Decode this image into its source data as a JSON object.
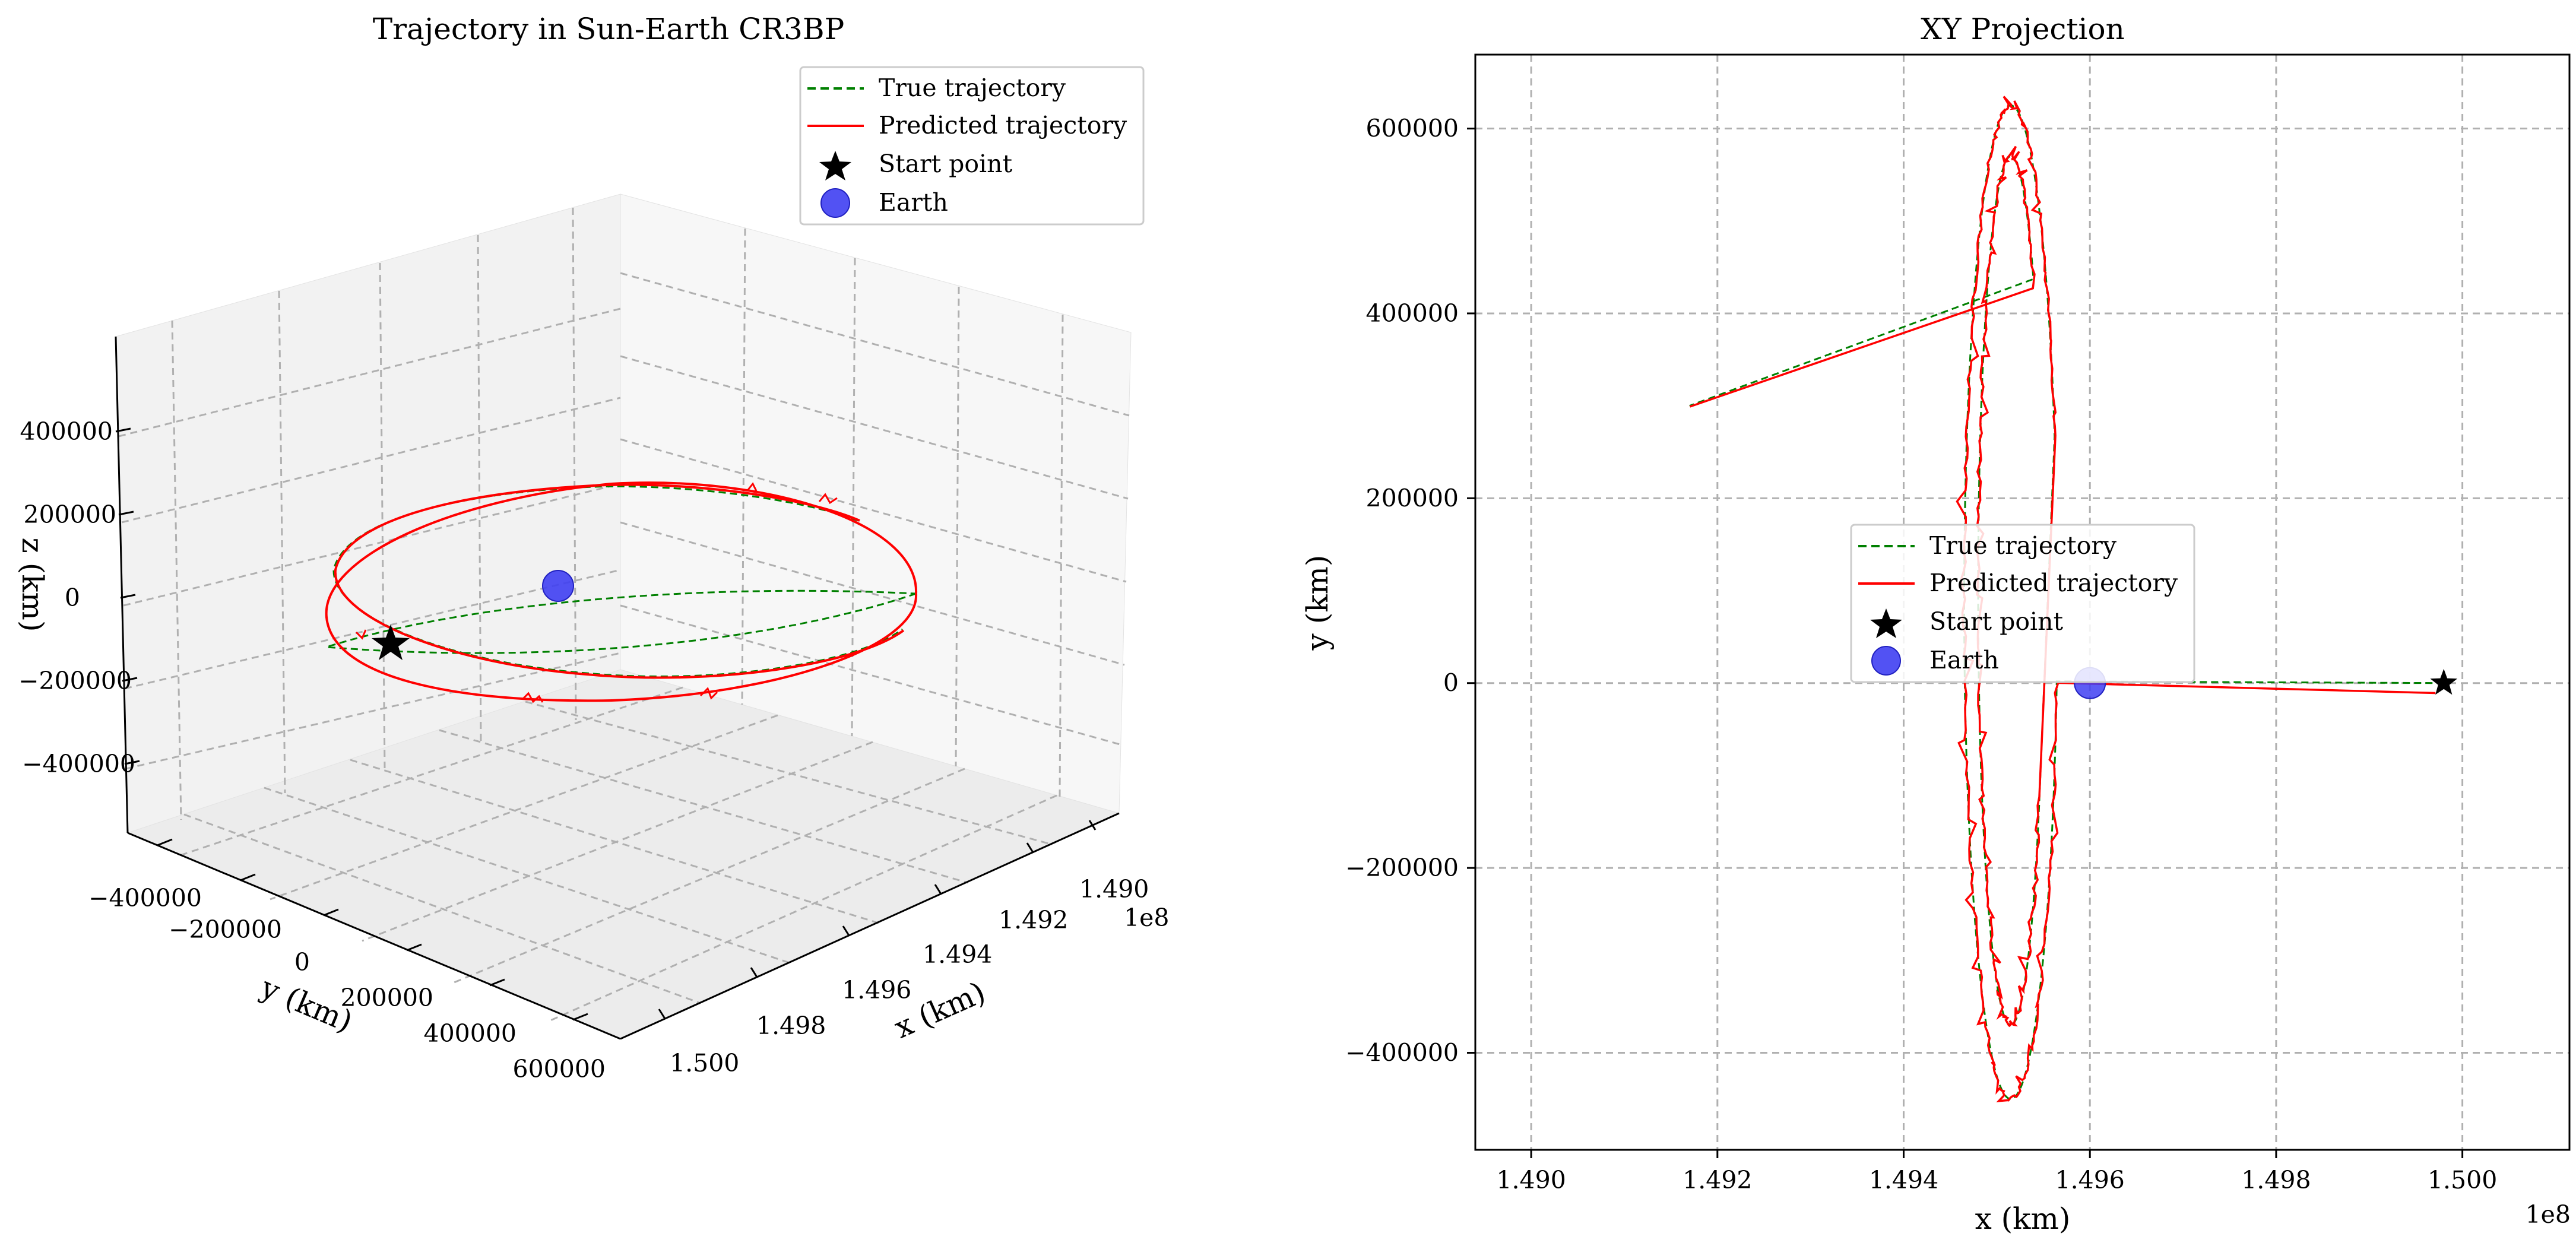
{
  "chart_data": [
    {
      "type": "line3d",
      "title": "Trajectory in Sun-Earth CR3BP",
      "xlabel": "x (km)",
      "ylabel": "y (km)",
      "zlabel": "z (km)",
      "x_offset_label": "1e8",
      "x_ticks": [
        "1.490",
        "1.492",
        "1.494",
        "1.496",
        "1.498",
        "1.500"
      ],
      "y_ticks": [
        "−400000",
        "−200000",
        "0",
        "200000",
        "400000",
        "600000"
      ],
      "z_ticks": [
        "400000",
        "200000",
        "0",
        "−200000",
        "−400000"
      ],
      "legend": [
        {
          "label": "True trajectory",
          "color": "#008000",
          "style": "dashed"
        },
        {
          "label": "Predicted trajectory",
          "color": "#ff0000",
          "style": "solid"
        },
        {
          "label": "Start point",
          "color": "#000000",
          "marker": "star"
        },
        {
          "label": "Earth",
          "color": "#3f3ff2",
          "marker": "circle"
        }
      ],
      "start_point": {
        "x": 149980000.0,
        "y": 0,
        "z": 0
      },
      "earth": {
        "x": 149600000.0,
        "y": 0,
        "z": 0
      }
    },
    {
      "type": "line",
      "title": "XY Projection",
      "xlabel": "x (km)",
      "ylabel": "y (km)",
      "x_offset_label": "1e8",
      "xlim": [
        1.4894,
        1.50115
      ],
      "ylim": [
        -505000,
        680000
      ],
      "x_ticks": [
        1.49,
        1.492,
        1.494,
        1.496,
        1.498,
        1.5
      ],
      "x_tick_labels": [
        "1.490",
        "1.492",
        "1.494",
        "1.496",
        "1.498",
        "1.500"
      ],
      "y_ticks": [
        -400000,
        -200000,
        0,
        200000,
        400000,
        600000
      ],
      "y_tick_labels": [
        "−400000",
        "−200000",
        "0",
        "200000",
        "400000",
        "600000"
      ],
      "legend": [
        {
          "label": "True trajectory",
          "color": "#008000",
          "style": "dashed"
        },
        {
          "label": "Predicted trajectory",
          "color": "#ff0000",
          "style": "solid"
        },
        {
          "label": "Start point",
          "color": "#000000",
          "marker": "star"
        },
        {
          "label": "Earth",
          "color": "#3f3ff2",
          "marker": "circle"
        }
      ],
      "start_point": {
        "x": 1.4998,
        "y": 0
      },
      "earth": {
        "x": 1.496,
        "y": 0
      },
      "orbit": {
        "outer_loop": {
          "center_x": 1.49515,
          "center_y": 87500,
          "semi_x": 0.0005,
          "semi_y": 537500
        },
        "inner_loop": {
          "center_x": 1.49515,
          "center_y": 100000,
          "semi_x": 0.00035,
          "semi_y": 470000
        },
        "end_point": {
          "x": 1.4917,
          "y": 300000
        }
      }
    }
  ]
}
